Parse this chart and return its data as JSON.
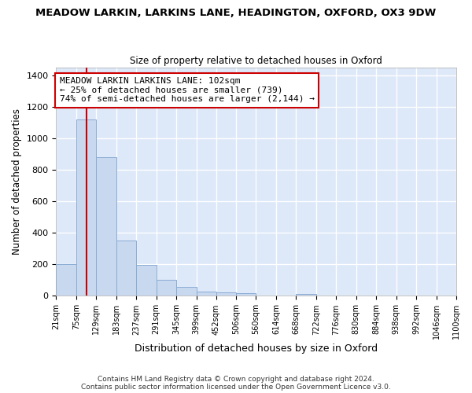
{
  "title": "MEADOW LARKIN, LARKINS LANE, HEADINGTON, OXFORD, OX3 9DW",
  "subtitle": "Size of property relative to detached houses in Oxford",
  "xlabel": "Distribution of detached houses by size in Oxford",
  "ylabel": "Number of detached properties",
  "bar_color": "#c8d8ef",
  "bar_edge_color": "#8aacd4",
  "background_color": "#dde8f8",
  "grid_color": "#ffffff",
  "annotation_text": "MEADOW LARKIN LARKINS LANE: 102sqm\n← 25% of detached houses are smaller (739)\n74% of semi-detached houses are larger (2,144) →",
  "vline_x": 102,
  "vline_color": "#cc0000",
  "footer_text": "Contains HM Land Registry data © Crown copyright and database right 2024.\nContains public sector information licensed under the Open Government Licence v3.0.",
  "bin_edges": [
    21,
    75,
    129,
    183,
    237,
    291,
    345,
    399,
    452,
    506,
    560,
    614,
    668,
    722,
    776,
    830,
    884,
    938,
    992,
    1046,
    1100
  ],
  "bar_heights": [
    200,
    1120,
    880,
    350,
    195,
    100,
    55,
    25,
    20,
    15,
    0,
    0,
    10,
    0,
    0,
    0,
    0,
    0,
    0,
    0
  ],
  "ylim": [
    0,
    1450
  ],
  "yticks": [
    0,
    200,
    400,
    600,
    800,
    1000,
    1200,
    1400
  ]
}
